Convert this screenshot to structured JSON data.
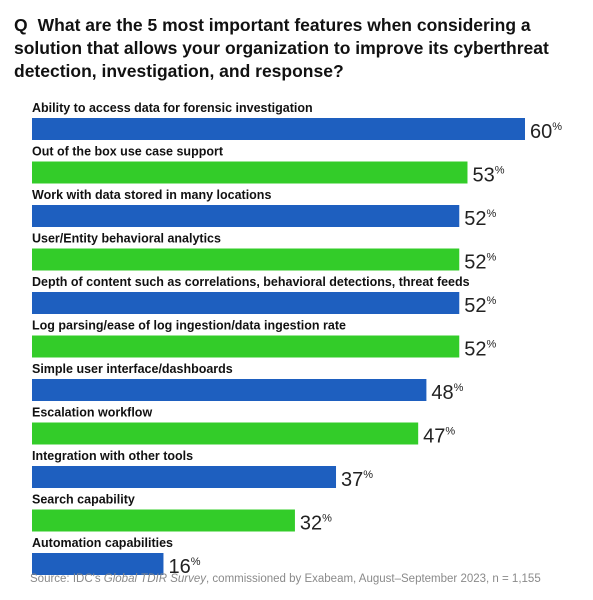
{
  "question": {
    "marker": "Q",
    "text": "What are the 5 most important features when considering a solution that allows your organization to improve its cyberthreat detection, investigation, and response?"
  },
  "colors": {
    "blue": "#1E5FBF",
    "green": "#33CC29"
  },
  "chart_data": {
    "type": "bar",
    "orientation": "horizontal",
    "value_suffix": "%",
    "xlim": [
      0,
      60
    ],
    "categories": [
      "Ability to access data for forensic investigation",
      "Out of the box use case support",
      "Work with data stored in many locations",
      "User/Entity behavioral analytics",
      "Depth of content such as correlations, behavioral detections, threat feeds",
      "Log parsing/ease of log ingestion/data ingestion rate",
      "Simple user interface/dashboards",
      "Escalation workflow",
      "Integration with other tools",
      "Search capability",
      "Automation capabilities"
    ],
    "values": [
      60,
      53,
      52,
      52,
      52,
      52,
      48,
      47,
      37,
      32,
      16
    ],
    "bar_colors": [
      "blue",
      "green",
      "blue",
      "green",
      "blue",
      "green",
      "blue",
      "green",
      "blue",
      "green",
      "blue"
    ]
  },
  "source": {
    "prefix": "Source: IDC's ",
    "italic": "Global TDIR Survey",
    "suffix": ", commissioned by Exabeam, August–September 2023, n = 1,155"
  }
}
